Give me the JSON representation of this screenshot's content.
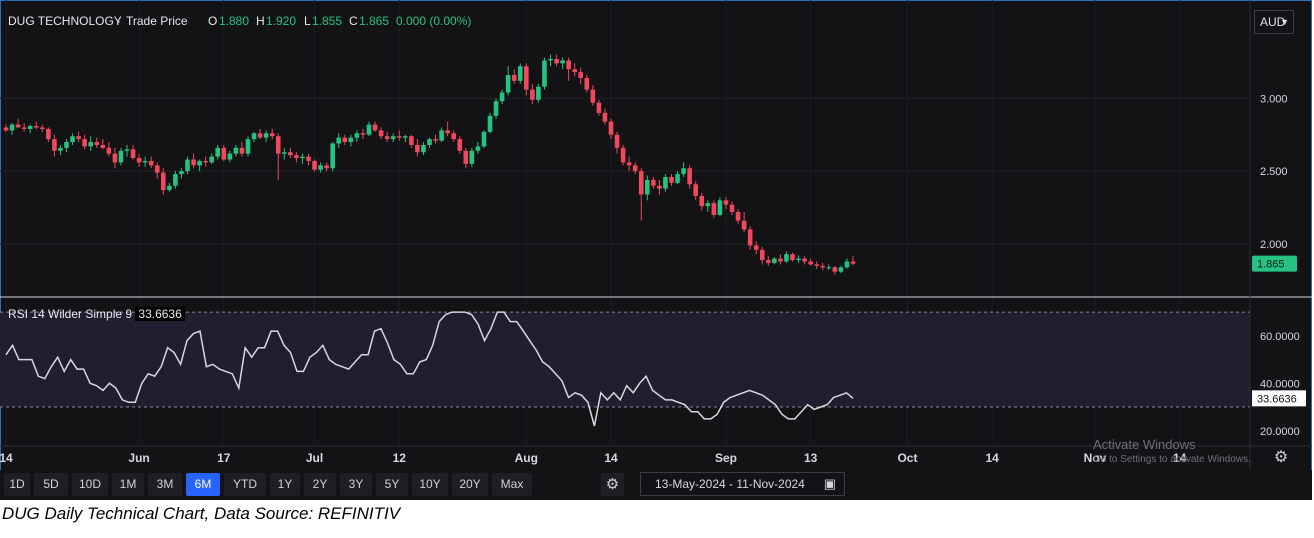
{
  "header": {
    "symbol": "DUG TECHNOLOGY",
    "series_label": "Trade Price",
    "o_label": "O",
    "o_value": "1.880",
    "h_label": "H",
    "h_value": "1.920",
    "l_label": "L",
    "l_value": "1.855",
    "c_label": "C",
    "c_value": "1.865",
    "change": "0.000 (0.00%)"
  },
  "currency": {
    "label": "AUD"
  },
  "price_badge": "1.865",
  "rsi_header": {
    "label": "RSI 14 Wilder Simple 9",
    "value": "33.6636"
  },
  "rsi_badge": "33.6636",
  "watermark": {
    "line1": "Activate Windows",
    "line2": "Go to Settings to activate Windows."
  },
  "toolbar": {
    "timeframes": [
      "1D",
      "5D",
      "10D",
      "1M",
      "3M",
      "6M",
      "YTD",
      "1Y",
      "2Y",
      "3Y",
      "5Y",
      "10Y",
      "20Y",
      "Max"
    ],
    "active": "6M",
    "date_range": "13-May-2024  -  11-Nov-2024"
  },
  "caption": "DUG Daily Technical Chart, Data Source: REFINITIV",
  "colors": {
    "up": "#26c281",
    "down": "#f0485c",
    "background": "#131316",
    "rsi_line": "#d8d8dc",
    "rsi_band": "#221d2f",
    "accent": "#2862ff"
  },
  "chart_data": [
    {
      "type": "candlestick",
      "title": "DUG TECHNOLOGY - Trade Price",
      "y_ticks": [
        "3.000",
        "2.500",
        "2.000"
      ],
      "y_tick_values": [
        3.0,
        2.5,
        2.0
      ],
      "ylim": [
        1.65,
        3.62
      ],
      "x_ticks": [
        "14",
        "Jun",
        "17",
        "Jul",
        "12",
        "Aug",
        "14",
        "Sep",
        "13",
        "Oct",
        "14",
        "Nov",
        "14"
      ],
      "x_tick_index": [
        0,
        22,
        36,
        51,
        65,
        86,
        100,
        119,
        133,
        149,
        163,
        180,
        194
      ],
      "candles": [
        {
          "o": 2.8,
          "h": 2.82,
          "l": 2.77,
          "c": 2.78
        },
        {
          "o": 2.78,
          "h": 2.83,
          "l": 2.75,
          "c": 2.82
        },
        {
          "o": 2.82,
          "h": 2.86,
          "l": 2.8,
          "c": 2.8
        },
        {
          "o": 2.8,
          "h": 2.83,
          "l": 2.77,
          "c": 2.79
        },
        {
          "o": 2.79,
          "h": 2.82,
          "l": 2.76,
          "c": 2.81
        },
        {
          "o": 2.81,
          "h": 2.84,
          "l": 2.79,
          "c": 2.8
        },
        {
          "o": 2.8,
          "h": 2.82,
          "l": 2.77,
          "c": 2.79
        },
        {
          "o": 2.79,
          "h": 2.8,
          "l": 2.7,
          "c": 2.72
        },
        {
          "o": 2.72,
          "h": 2.75,
          "l": 2.6,
          "c": 2.64
        },
        {
          "o": 2.64,
          "h": 2.68,
          "l": 2.61,
          "c": 2.66
        },
        {
          "o": 2.66,
          "h": 2.72,
          "l": 2.63,
          "c": 2.7
        },
        {
          "o": 2.7,
          "h": 2.76,
          "l": 2.68,
          "c": 2.74
        },
        {
          "o": 2.74,
          "h": 2.77,
          "l": 2.7,
          "c": 2.72
        },
        {
          "o": 2.72,
          "h": 2.75,
          "l": 2.65,
          "c": 2.67
        },
        {
          "o": 2.67,
          "h": 2.74,
          "l": 2.64,
          "c": 2.7
        },
        {
          "o": 2.7,
          "h": 2.73,
          "l": 2.66,
          "c": 2.68
        },
        {
          "o": 2.68,
          "h": 2.72,
          "l": 2.65,
          "c": 2.66
        },
        {
          "o": 2.66,
          "h": 2.7,
          "l": 2.6,
          "c": 2.62
        },
        {
          "o": 2.62,
          "h": 2.66,
          "l": 2.52,
          "c": 2.56
        },
        {
          "o": 2.56,
          "h": 2.66,
          "l": 2.54,
          "c": 2.64
        },
        {
          "o": 2.64,
          "h": 2.68,
          "l": 2.6,
          "c": 2.65
        },
        {
          "o": 2.65,
          "h": 2.68,
          "l": 2.58,
          "c": 2.59
        },
        {
          "o": 2.59,
          "h": 2.62,
          "l": 2.53,
          "c": 2.56
        },
        {
          "o": 2.56,
          "h": 2.6,
          "l": 2.53,
          "c": 2.57
        },
        {
          "o": 2.57,
          "h": 2.6,
          "l": 2.52,
          "c": 2.54
        },
        {
          "o": 2.54,
          "h": 2.56,
          "l": 2.45,
          "c": 2.49
        },
        {
          "o": 2.49,
          "h": 2.52,
          "l": 2.34,
          "c": 2.37
        },
        {
          "o": 2.37,
          "h": 2.42,
          "l": 2.36,
          "c": 2.4
        },
        {
          "o": 2.4,
          "h": 2.5,
          "l": 2.38,
          "c": 2.48
        },
        {
          "o": 2.48,
          "h": 2.52,
          "l": 2.45,
          "c": 2.5
        },
        {
          "o": 2.5,
          "h": 2.6,
          "l": 2.48,
          "c": 2.58
        },
        {
          "o": 2.58,
          "h": 2.62,
          "l": 2.52,
          "c": 2.54
        },
        {
          "o": 2.54,
          "h": 2.58,
          "l": 2.5,
          "c": 2.57
        },
        {
          "o": 2.57,
          "h": 2.6,
          "l": 2.53,
          "c": 2.56
        },
        {
          "o": 2.56,
          "h": 2.62,
          "l": 2.55,
          "c": 2.6
        },
        {
          "o": 2.6,
          "h": 2.68,
          "l": 2.58,
          "c": 2.66
        },
        {
          "o": 2.66,
          "h": 2.68,
          "l": 2.57,
          "c": 2.58
        },
        {
          "o": 2.58,
          "h": 2.64,
          "l": 2.56,
          "c": 2.62
        },
        {
          "o": 2.62,
          "h": 2.68,
          "l": 2.6,
          "c": 2.66
        },
        {
          "o": 2.66,
          "h": 2.7,
          "l": 2.6,
          "c": 2.62
        },
        {
          "o": 2.62,
          "h": 2.74,
          "l": 2.6,
          "c": 2.72
        },
        {
          "o": 2.72,
          "h": 2.77,
          "l": 2.7,
          "c": 2.76
        },
        {
          "o": 2.76,
          "h": 2.79,
          "l": 2.72,
          "c": 2.73
        },
        {
          "o": 2.73,
          "h": 2.78,
          "l": 2.7,
          "c": 2.76
        },
        {
          "o": 2.76,
          "h": 2.79,
          "l": 2.72,
          "c": 2.74
        },
        {
          "o": 2.74,
          "h": 2.76,
          "l": 2.44,
          "c": 2.62
        },
        {
          "o": 2.62,
          "h": 2.66,
          "l": 2.58,
          "c": 2.63
        },
        {
          "o": 2.63,
          "h": 2.66,
          "l": 2.59,
          "c": 2.61
        },
        {
          "o": 2.61,
          "h": 2.63,
          "l": 2.56,
          "c": 2.59
        },
        {
          "o": 2.59,
          "h": 2.62,
          "l": 2.55,
          "c": 2.6
        },
        {
          "o": 2.6,
          "h": 2.62,
          "l": 2.54,
          "c": 2.57
        },
        {
          "o": 2.57,
          "h": 2.58,
          "l": 2.5,
          "c": 2.51
        },
        {
          "o": 2.51,
          "h": 2.56,
          "l": 2.49,
          "c": 2.54
        },
        {
          "o": 2.54,
          "h": 2.56,
          "l": 2.5,
          "c": 2.52
        },
        {
          "o": 2.52,
          "h": 2.7,
          "l": 2.5,
          "c": 2.69
        },
        {
          "o": 2.69,
          "h": 2.76,
          "l": 2.66,
          "c": 2.73
        },
        {
          "o": 2.73,
          "h": 2.75,
          "l": 2.68,
          "c": 2.7
        },
        {
          "o": 2.7,
          "h": 2.75,
          "l": 2.67,
          "c": 2.73
        },
        {
          "o": 2.73,
          "h": 2.78,
          "l": 2.7,
          "c": 2.76
        },
        {
          "o": 2.76,
          "h": 2.79,
          "l": 2.72,
          "c": 2.75
        },
        {
          "o": 2.75,
          "h": 2.84,
          "l": 2.74,
          "c": 2.82
        },
        {
          "o": 2.82,
          "h": 2.84,
          "l": 2.77,
          "c": 2.78
        },
        {
          "o": 2.78,
          "h": 2.8,
          "l": 2.72,
          "c": 2.74
        },
        {
          "o": 2.74,
          "h": 2.77,
          "l": 2.7,
          "c": 2.72
        },
        {
          "o": 2.72,
          "h": 2.76,
          "l": 2.7,
          "c": 2.74
        },
        {
          "o": 2.74,
          "h": 2.78,
          "l": 2.71,
          "c": 2.73
        },
        {
          "o": 2.73,
          "h": 2.75,
          "l": 2.7,
          "c": 2.74
        },
        {
          "o": 2.74,
          "h": 2.75,
          "l": 2.66,
          "c": 2.68
        },
        {
          "o": 2.68,
          "h": 2.72,
          "l": 2.6,
          "c": 2.63
        },
        {
          "o": 2.63,
          "h": 2.7,
          "l": 2.61,
          "c": 2.68
        },
        {
          "o": 2.68,
          "h": 2.73,
          "l": 2.66,
          "c": 2.72
        },
        {
          "o": 2.72,
          "h": 2.75,
          "l": 2.69,
          "c": 2.71
        },
        {
          "o": 2.71,
          "h": 2.8,
          "l": 2.7,
          "c": 2.78
        },
        {
          "o": 2.78,
          "h": 2.84,
          "l": 2.74,
          "c": 2.76
        },
        {
          "o": 2.76,
          "h": 2.78,
          "l": 2.7,
          "c": 2.72
        },
        {
          "o": 2.72,
          "h": 2.74,
          "l": 2.62,
          "c": 2.64
        },
        {
          "o": 2.64,
          "h": 2.66,
          "l": 2.52,
          "c": 2.55
        },
        {
          "o": 2.55,
          "h": 2.66,
          "l": 2.53,
          "c": 2.64
        },
        {
          "o": 2.64,
          "h": 2.7,
          "l": 2.62,
          "c": 2.67
        },
        {
          "o": 2.67,
          "h": 2.78,
          "l": 2.66,
          "c": 2.77
        },
        {
          "o": 2.77,
          "h": 2.9,
          "l": 2.76,
          "c": 2.88
        },
        {
          "o": 2.88,
          "h": 3.0,
          "l": 2.86,
          "c": 2.98
        },
        {
          "o": 2.98,
          "h": 3.06,
          "l": 2.96,
          "c": 3.04
        },
        {
          "o": 3.04,
          "h": 3.22,
          "l": 3.02,
          "c": 3.16
        },
        {
          "o": 3.16,
          "h": 3.2,
          "l": 3.1,
          "c": 3.12
        },
        {
          "o": 3.12,
          "h": 3.24,
          "l": 3.1,
          "c": 3.22
        },
        {
          "o": 3.22,
          "h": 3.24,
          "l": 3.02,
          "c": 3.06
        },
        {
          "o": 3.06,
          "h": 3.1,
          "l": 2.96,
          "c": 2.99
        },
        {
          "o": 2.99,
          "h": 3.1,
          "l": 2.97,
          "c": 3.08
        },
        {
          "o": 3.08,
          "h": 3.28,
          "l": 3.06,
          "c": 3.26
        },
        {
          "o": 3.26,
          "h": 3.3,
          "l": 3.22,
          "c": 3.27
        },
        {
          "o": 3.27,
          "h": 3.3,
          "l": 3.22,
          "c": 3.24
        },
        {
          "o": 3.24,
          "h": 3.28,
          "l": 3.2,
          "c": 3.26
        },
        {
          "o": 3.26,
          "h": 3.28,
          "l": 3.12,
          "c": 3.2
        },
        {
          "o": 3.2,
          "h": 3.24,
          "l": 3.15,
          "c": 3.18
        },
        {
          "o": 3.18,
          "h": 3.21,
          "l": 3.1,
          "c": 3.14
        },
        {
          "o": 3.14,
          "h": 3.16,
          "l": 3.04,
          "c": 3.06
        },
        {
          "o": 3.06,
          "h": 3.09,
          "l": 2.95,
          "c": 2.97
        },
        {
          "o": 2.97,
          "h": 2.99,
          "l": 2.88,
          "c": 2.9
        },
        {
          "o": 2.9,
          "h": 2.93,
          "l": 2.82,
          "c": 2.84
        },
        {
          "o": 2.84,
          "h": 2.86,
          "l": 2.72,
          "c": 2.75
        },
        {
          "o": 2.75,
          "h": 2.77,
          "l": 2.62,
          "c": 2.66
        },
        {
          "o": 2.66,
          "h": 2.68,
          "l": 2.54,
          "c": 2.56
        },
        {
          "o": 2.56,
          "h": 2.6,
          "l": 2.5,
          "c": 2.54
        },
        {
          "o": 2.54,
          "h": 2.56,
          "l": 2.48,
          "c": 2.5
        },
        {
          "o": 2.5,
          "h": 2.52,
          "l": 2.16,
          "c": 2.34
        },
        {
          "o": 2.34,
          "h": 2.47,
          "l": 2.3,
          "c": 2.44
        },
        {
          "o": 2.44,
          "h": 2.46,
          "l": 2.38,
          "c": 2.4
        },
        {
          "o": 2.4,
          "h": 2.44,
          "l": 2.34,
          "c": 2.38
        },
        {
          "o": 2.38,
          "h": 2.48,
          "l": 2.36,
          "c": 2.46
        },
        {
          "o": 2.46,
          "h": 2.48,
          "l": 2.4,
          "c": 2.42
        },
        {
          "o": 2.42,
          "h": 2.5,
          "l": 2.41,
          "c": 2.48
        },
        {
          "o": 2.48,
          "h": 2.56,
          "l": 2.46,
          "c": 2.52
        },
        {
          "o": 2.52,
          "h": 2.54,
          "l": 2.38,
          "c": 2.41
        },
        {
          "o": 2.41,
          "h": 2.43,
          "l": 2.3,
          "c": 2.33
        },
        {
          "o": 2.33,
          "h": 2.35,
          "l": 2.23,
          "c": 2.26
        },
        {
          "o": 2.26,
          "h": 2.3,
          "l": 2.22,
          "c": 2.28
        },
        {
          "o": 2.28,
          "h": 2.3,
          "l": 2.18,
          "c": 2.2
        },
        {
          "o": 2.2,
          "h": 2.32,
          "l": 2.19,
          "c": 2.3
        },
        {
          "o": 2.3,
          "h": 2.32,
          "l": 2.24,
          "c": 2.27
        },
        {
          "o": 2.27,
          "h": 2.29,
          "l": 2.2,
          "c": 2.22
        },
        {
          "o": 2.22,
          "h": 2.24,
          "l": 2.14,
          "c": 2.16
        },
        {
          "o": 2.16,
          "h": 2.22,
          "l": 2.08,
          "c": 2.1
        },
        {
          "o": 2.1,
          "h": 2.12,
          "l": 1.96,
          "c": 1.99
        },
        {
          "o": 1.99,
          "h": 2.02,
          "l": 1.93,
          "c": 1.96
        },
        {
          "o": 1.96,
          "h": 1.98,
          "l": 1.86,
          "c": 1.89
        },
        {
          "o": 1.89,
          "h": 1.92,
          "l": 1.85,
          "c": 1.87
        },
        {
          "o": 1.87,
          "h": 1.91,
          "l": 1.86,
          "c": 1.9
        },
        {
          "o": 1.9,
          "h": 1.93,
          "l": 1.86,
          "c": 1.88
        },
        {
          "o": 1.88,
          "h": 1.95,
          "l": 1.87,
          "c": 1.93
        },
        {
          "o": 1.93,
          "h": 1.94,
          "l": 1.88,
          "c": 1.89
        },
        {
          "o": 1.89,
          "h": 1.92,
          "l": 1.87,
          "c": 1.9
        },
        {
          "o": 1.9,
          "h": 1.92,
          "l": 1.86,
          "c": 1.88
        },
        {
          "o": 1.88,
          "h": 1.9,
          "l": 1.85,
          "c": 1.86
        },
        {
          "o": 1.86,
          "h": 1.88,
          "l": 1.83,
          "c": 1.85
        },
        {
          "o": 1.85,
          "h": 1.87,
          "l": 1.82,
          "c": 1.84
        },
        {
          "o": 1.84,
          "h": 1.86,
          "l": 1.82,
          "c": 1.84
        },
        {
          "o": 1.84,
          "h": 1.85,
          "l": 1.79,
          "c": 1.81
        },
        {
          "o": 1.81,
          "h": 1.85,
          "l": 1.8,
          "c": 1.84
        },
        {
          "o": 1.84,
          "h": 1.9,
          "l": 1.83,
          "c": 1.88
        },
        {
          "o": 1.88,
          "h": 1.92,
          "l": 1.855,
          "c": 1.865
        }
      ]
    },
    {
      "type": "line",
      "title": "RSI 14 Wilder Simple 9",
      "y_ticks": [
        "60.0000",
        "40.0000",
        "20.0000"
      ],
      "y_tick_values": [
        60,
        40,
        20
      ],
      "ylim": [
        14,
        73
      ],
      "overbought": 70,
      "oversold": 30,
      "current": 33.6636,
      "values": [
        52,
        56,
        50,
        50,
        50,
        43,
        42,
        47,
        51,
        45,
        50,
        46,
        46,
        40,
        39,
        37,
        40,
        38,
        33,
        32,
        32,
        40,
        44,
        43,
        47,
        55,
        53,
        48,
        58,
        61,
        62,
        47,
        48,
        46,
        45,
        44,
        38,
        55,
        51,
        55,
        55,
        62,
        62,
        56,
        53,
        45,
        45,
        51,
        53,
        56,
        50,
        48,
        47,
        46,
        49,
        52,
        52,
        62,
        63,
        57,
        50,
        48,
        44,
        44,
        49,
        50,
        56,
        66,
        69,
        70,
        70,
        70,
        69,
        65,
        58,
        63,
        70,
        70,
        66,
        66,
        62,
        58,
        54,
        49,
        47,
        44,
        41,
        34,
        36,
        35,
        32,
        22,
        36,
        33,
        36,
        33,
        39,
        36,
        40,
        43,
        37,
        35,
        33,
        33,
        32,
        31,
        28,
        28,
        25,
        25,
        27,
        32,
        34,
        35,
        36,
        37,
        36,
        35,
        33,
        31,
        27,
        25,
        25,
        28,
        31,
        29,
        30,
        31,
        34,
        35,
        36,
        33.6636
      ]
    }
  ]
}
